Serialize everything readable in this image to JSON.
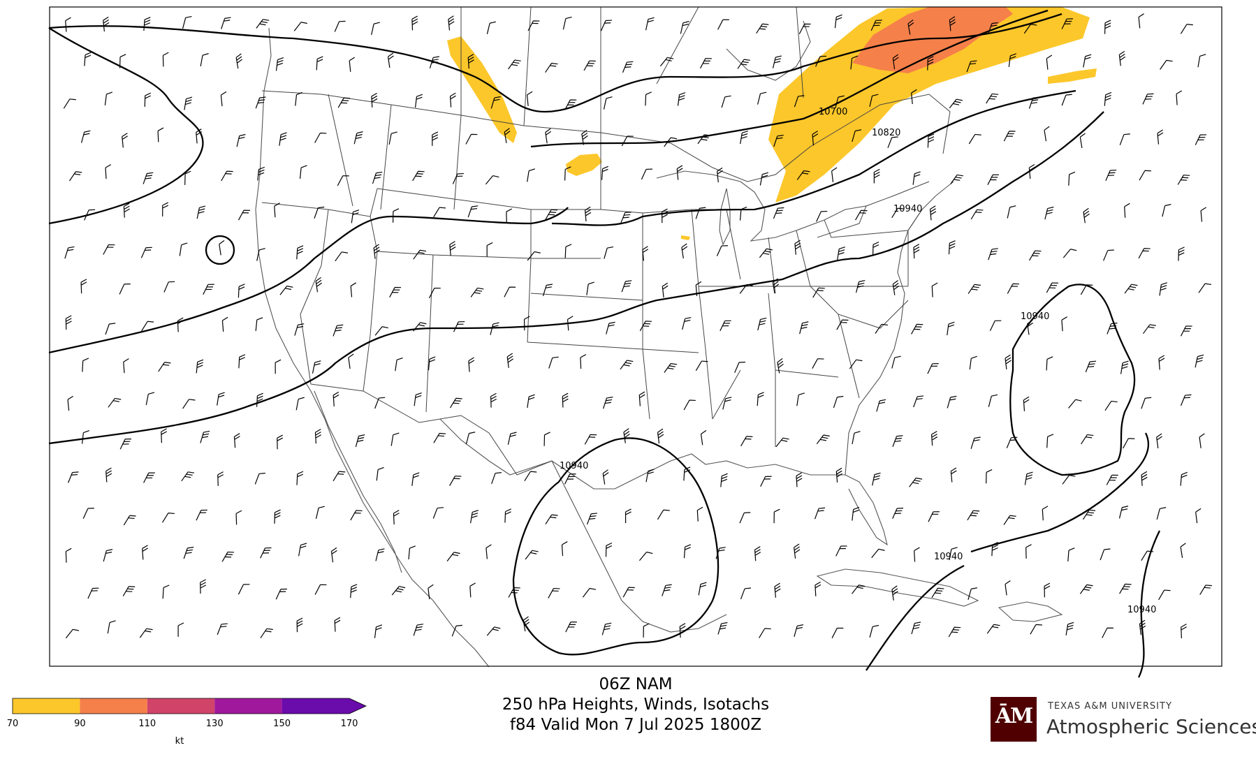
{
  "header": {
    "model": "06Z NAM",
    "product": "250 hPa Heights, Winds, Isotachs",
    "valid": "f84 Valid Mon 7 Jul 2025 1800Z"
  },
  "map": {
    "contour_labels": [
      "10700",
      "10820",
      "10940",
      "10940",
      "10940",
      "10940",
      "10940"
    ]
  },
  "colorbar": {
    "ticks": [
      "70",
      "90",
      "110",
      "130",
      "150",
      "170"
    ],
    "unit": "kt",
    "colors": [
      "#fcc72a",
      "#f5804a",
      "#d1446a",
      "#a0199c",
      "#6a0bac"
    ]
  },
  "logo": {
    "mark": "ĀM",
    "university": "TEXAS A&M UNIVERSITY",
    "department": "Atmospheric Sciences",
    "color": "#500000"
  }
}
